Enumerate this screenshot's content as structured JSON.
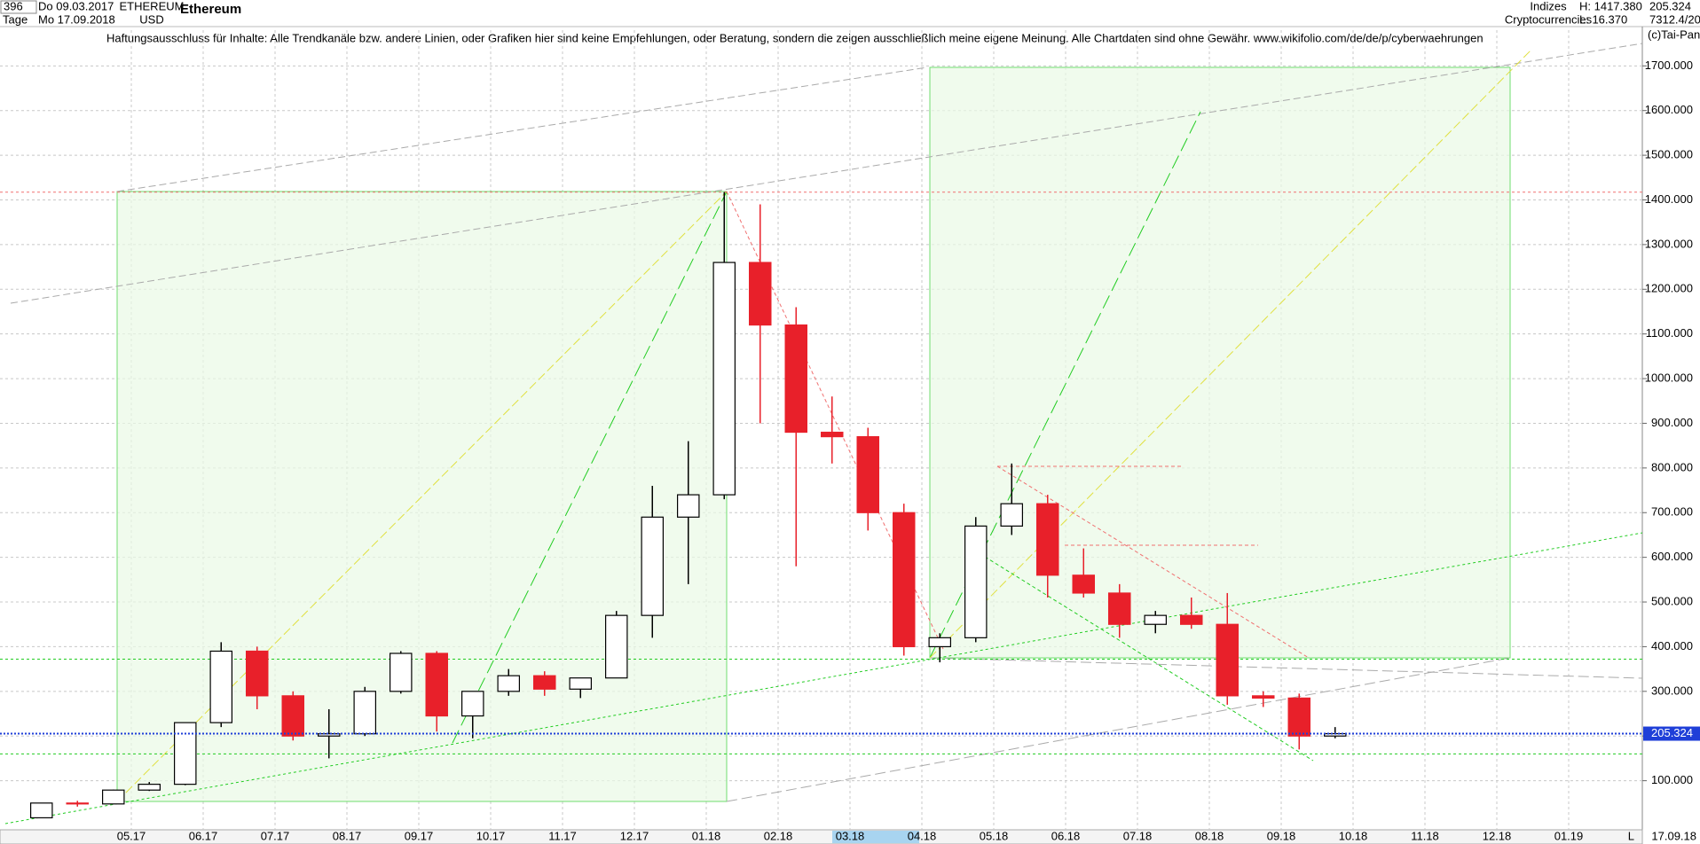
{
  "header": {
    "count": "396",
    "start_date": "Do 09.03.2017",
    "period": "Tage",
    "end_date": "Mo 17.09.2018",
    "symbol": "ETHEREUM",
    "currency": "USD",
    "group": "Indizes",
    "subgroup": "Cryptocurrencies",
    "high": "H: 1417.380",
    "low": "L: 16.370",
    "last": "205.324",
    "info": "7312.4/20",
    "copyright": "(c)Tai-Pan",
    "disclaimer": "Haftungsausschluss für Inhalte: Alle Trendkanäle bzw. andere Linien, oder Grafiken hier sind keine Empfehlungen, oder Beratung, sondern die zeigen ausschließlich meine eigene Meinung. Alle Chartdaten sind ohne Gewähr.  www.wikifolio.com/de/de/p/cyberwaehrungen",
    "footer_date": "17.09.18",
    "footer_scale": "L"
  },
  "chart_data": {
    "type": "candlestick",
    "title": "Ethereum",
    "categories": [
      null,
      null,
      null,
      "05.17",
      null,
      "06.17",
      null,
      "07.17",
      null,
      "08.17",
      null,
      "09.17",
      null,
      "10.17",
      null,
      "11.17",
      null,
      "12.17",
      null,
      "01.18",
      null,
      "02.18",
      null,
      "03.18",
      null,
      "04.18",
      null,
      "05.18",
      null,
      "06.18",
      null,
      "07.18",
      null,
      "08.18",
      null,
      "09.18",
      null,
      "10.18",
      null,
      "11.18",
      null,
      "12.18",
      null,
      "01.19",
      null
    ],
    "open": [
      17,
      50,
      48,
      79,
      92,
      230,
      390,
      290,
      200,
      205,
      300,
      385,
      245,
      300,
      335,
      305,
      330,
      470,
      690,
      740,
      1260,
      1120,
      880,
      870,
      700,
      400,
      420,
      670,
      720,
      560,
      520,
      450,
      470,
      450,
      290,
      285,
      200,
      null,
      null,
      null,
      null,
      null,
      null,
      null,
      null
    ],
    "high": [
      50,
      55,
      80,
      97,
      230,
      410,
      400,
      300,
      260,
      310,
      390,
      390,
      300,
      350,
      345,
      330,
      480,
      760,
      860,
      1417.38,
      1390,
      1160,
      960,
      890,
      720,
      430,
      690,
      810,
      740,
      620,
      540,
      480,
      510,
      520,
      300,
      295,
      220,
      null,
      null,
      null,
      null,
      null,
      null,
      null,
      null
    ],
    "low": [
      16.37,
      42,
      47,
      77,
      90,
      220,
      260,
      190,
      150,
      200,
      295,
      210,
      195,
      290,
      290,
      285,
      330,
      420,
      540,
      730,
      900,
      580,
      810,
      660,
      380,
      365,
      410,
      650,
      510,
      510,
      420,
      430,
      440,
      270,
      265,
      170,
      195,
      null,
      null,
      null,
      null,
      null,
      null,
      null,
      null
    ],
    "close": [
      50,
      48,
      79,
      92,
      230,
      390,
      290,
      200,
      205,
      300,
      385,
      245,
      300,
      335,
      305,
      330,
      470,
      690,
      740,
      1260,
      1120,
      880,
      870,
      700,
      400,
      420,
      670,
      720,
      560,
      520,
      450,
      470,
      450,
      290,
      285,
      200,
      205.324,
      null,
      null,
      null,
      null,
      null,
      null,
      null,
      null
    ],
    "up_color": "#000000",
    "down_color": "#e8202a",
    "ylim": [
      0,
      1780
    ],
    "yticks": [
      {
        "value": 100,
        "label": "100.000"
      },
      {
        "value": 200,
        "label": "200.000"
      },
      {
        "value": 300,
        "label": "300.000"
      },
      {
        "value": 400,
        "label": "400.000"
      },
      {
        "value": 500,
        "label": "500.000"
      },
      {
        "value": 600,
        "label": "600.000"
      },
      {
        "value": 700,
        "label": "700.000"
      },
      {
        "value": 800,
        "label": "800.000"
      },
      {
        "value": 900,
        "label": "900.000"
      },
      {
        "value": 1000,
        "label": "1000.000"
      },
      {
        "value": 1100,
        "label": "1100.000"
      },
      {
        "value": 1200,
        "label": "1200.000"
      },
      {
        "value": 1300,
        "label": "1300.000"
      },
      {
        "value": 1400,
        "label": "1400.000"
      },
      {
        "value": 1500,
        "label": "1500.000"
      },
      {
        "value": 1600,
        "label": "1600.000"
      },
      {
        "value": 1700,
        "label": "1700.000"
      }
    ],
    "grid": true,
    "last_price": 205.324,
    "last_price_color": "#1f3fd8",
    "hlines": [
      {
        "value": 1417.38,
        "color": "#f07070"
      },
      {
        "value": 372,
        "color": "#22cc22"
      },
      {
        "value": 160,
        "color": "#22cc22"
      }
    ]
  }
}
